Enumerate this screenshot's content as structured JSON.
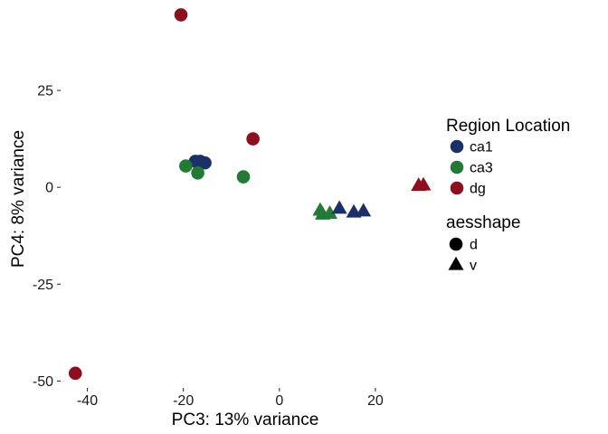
{
  "chart_data": {
    "type": "scatter",
    "xlabel": "PC3: 13% variance",
    "ylabel": "PC4: 8% variance",
    "xlim": [
      -45,
      30
    ],
    "ylim": [
      -52,
      46
    ],
    "xticks": [
      -40,
      -20,
      0,
      20
    ],
    "yticks": [
      -50,
      -25,
      0,
      25
    ],
    "grid": false,
    "legend_position": "right",
    "color_legend": {
      "title": "Region Location",
      "entries": [
        {
          "label": "ca1",
          "color": "#1B3068"
        },
        {
          "label": "ca3",
          "color": "#237A35"
        },
        {
          "label": "dg",
          "color": "#8E0E1E"
        }
      ]
    },
    "shape_legend": {
      "title": "aesshape",
      "entries": [
        {
          "label": "d",
          "shape": "circle"
        },
        {
          "label": "v",
          "shape": "triangle"
        }
      ]
    },
    "points": [
      {
        "x": -20.5,
        "y": 44.5,
        "region": "dg",
        "shape": "d"
      },
      {
        "x": -5.5,
        "y": 12.5,
        "region": "dg",
        "shape": "d"
      },
      {
        "x": -42.5,
        "y": -48.0,
        "region": "dg",
        "shape": "d"
      },
      {
        "x": -17.5,
        "y": 6.7,
        "region": "ca1",
        "shape": "d"
      },
      {
        "x": -16.5,
        "y": 6.7,
        "region": "ca1",
        "shape": "d"
      },
      {
        "x": -15.5,
        "y": 6.3,
        "region": "ca1",
        "shape": "d"
      },
      {
        "x": -19.5,
        "y": 5.5,
        "region": "ca3",
        "shape": "d"
      },
      {
        "x": -17.0,
        "y": 3.7,
        "region": "ca3",
        "shape": "d"
      },
      {
        "x": -7.5,
        "y": 2.7,
        "region": "ca3",
        "shape": "d"
      },
      {
        "x": 8.5,
        "y": -6.0,
        "region": "ca3",
        "shape": "v"
      },
      {
        "x": 9.0,
        "y": -7.0,
        "region": "ca3",
        "shape": "v"
      },
      {
        "x": 10.5,
        "y": -6.8,
        "region": "ca3",
        "shape": "v"
      },
      {
        "x": 12.5,
        "y": -5.5,
        "region": "ca1",
        "shape": "v"
      },
      {
        "x": 15.5,
        "y": -6.5,
        "region": "ca1",
        "shape": "v"
      },
      {
        "x": 17.5,
        "y": -6.2,
        "region": "ca1",
        "shape": "v"
      },
      {
        "x": 29.0,
        "y": 0.4,
        "region": "dg",
        "shape": "v"
      },
      {
        "x": 30.0,
        "y": 0.5,
        "region": "dg",
        "shape": "v"
      }
    ]
  }
}
